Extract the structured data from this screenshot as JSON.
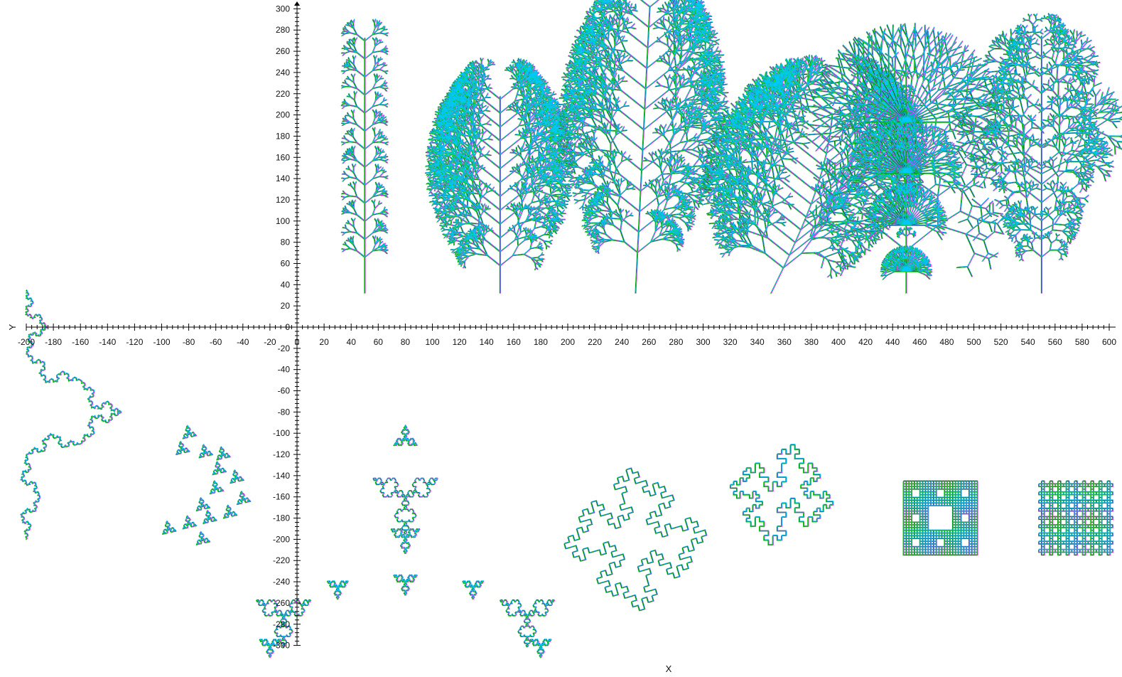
{
  "chart_data": {
    "type": "other",
    "xlabel": "X",
    "ylabel": "Y",
    "xlim": [
      -200,
      600
    ],
    "ylim": [
      -300,
      300
    ],
    "x_ticks": [
      -200,
      -180,
      -160,
      -140,
      -120,
      -100,
      -80,
      -60,
      -40,
      -20,
      0,
      20,
      40,
      60,
      80,
      100,
      120,
      140,
      160,
      180,
      200,
      220,
      240,
      260,
      280,
      300,
      320,
      340,
      360,
      380,
      400,
      420,
      440,
      460,
      480,
      500,
      520,
      540,
      560,
      580,
      600
    ],
    "y_ticks": [
      300,
      280,
      260,
      240,
      220,
      200,
      180,
      160,
      140,
      120,
      100,
      80,
      60,
      40,
      20,
      0,
      -20,
      -40,
      -60,
      -80,
      -100,
      -120,
      -140,
      -160,
      -180,
      -200,
      -220,
      -240,
      -260,
      -280,
      -300
    ],
    "stroke_colors": [
      "#000000",
      "#ff00ff",
      "#00d000",
      "#00c8ff",
      "#ff3030",
      "#3050ff",
      "#e0c000"
    ],
    "trees": [
      {
        "base_x": 50,
        "base_y": 32,
        "top_y": 270,
        "style": "sparse-bush"
      },
      {
        "base_x": 150,
        "base_y": 32,
        "top_y": 215,
        "style": "bushy-left"
      },
      {
        "base_x": 250,
        "base_y": 32,
        "top_y": 302,
        "style": "bushy-tall"
      },
      {
        "base_x": 350,
        "base_y": 32,
        "top_y": 200,
        "style": "weeping"
      },
      {
        "base_x": 450,
        "base_y": 32,
        "top_y": 220,
        "style": "tiered-umbrella"
      },
      {
        "base_x": 550,
        "base_y": 32,
        "top_y": 272,
        "style": "tiered-fern"
      }
    ],
    "curves": [
      {
        "name_hint": "koch-snake",
        "x_range": [
          -200,
          -130
        ],
        "y_range": [
          -200,
          45
        ]
      },
      {
        "name_hint": "hex-gosper",
        "x_range": [
          -105,
          -30
        ],
        "y_range": [
          -215,
          -95
        ]
      },
      {
        "name_hint": "koch-tree",
        "x_range": [
          -40,
          200
        ],
        "y_range": [
          -300,
          -90
        ]
      },
      {
        "name_hint": "quadratic-koch",
        "x_range": [
          190,
          310
        ],
        "y_range": [
          -260,
          -145
        ]
      },
      {
        "name_hint": "koch-island",
        "x_range": [
          310,
          400
        ],
        "y_range": [
          -200,
          -115
        ]
      },
      {
        "name_hint": "box-fractal-a",
        "x_range": [
          448,
          502
        ],
        "y_range": [
          -200,
          -145
        ]
      },
      {
        "name_hint": "box-fractal-b",
        "x_range": [
          548,
          602
        ],
        "y_range": [
          -200,
          -145
        ]
      }
    ]
  }
}
